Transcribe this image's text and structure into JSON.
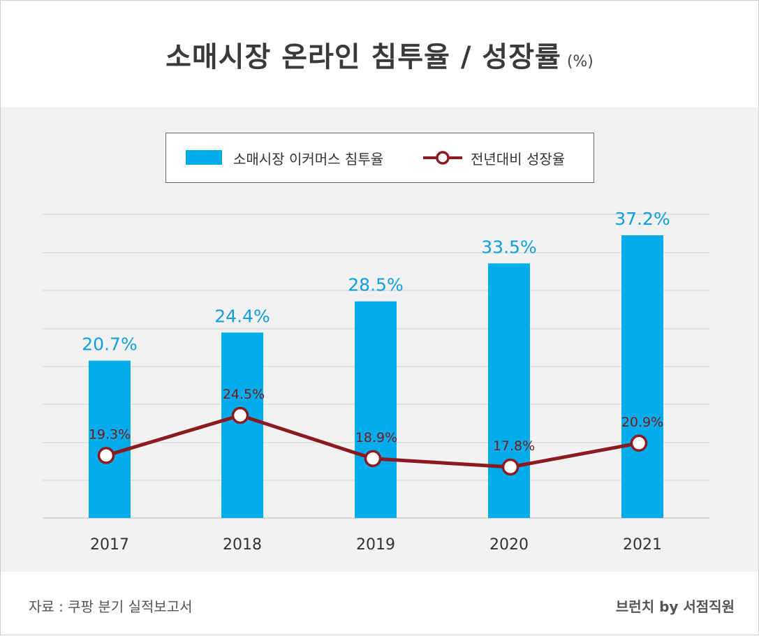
{
  "title": "소매시장 온라인 침투율 / 성장률",
  "unit": "(%)",
  "legend": {
    "bar_label": "소매시장 이커머스 침투율",
    "line_label": "전년대비 성장율"
  },
  "source": "자료 : 쿠팡 분기 실적보고서",
  "brand": "브런치 by 서점직원",
  "colors": {
    "bar": "#00aceb",
    "line": "#8c1a1f",
    "bar_label": "#0f9fdc",
    "line_label": "#7a1a1f",
    "grid": "#d0d0d0",
    "axis_text": "#333333"
  },
  "chart_data": {
    "type": "bar+line",
    "title": "소매시장 온라인 침투율 / 성장률",
    "categories": [
      "2017",
      "2018",
      "2019",
      "2020",
      "2021"
    ],
    "series": [
      {
        "name": "소매시장 이커머스 침투율",
        "type": "bar",
        "values": [
          20.7,
          24.4,
          28.5,
          33.5,
          37.2
        ],
        "labels": [
          "20.7%",
          "24.4%",
          "28.5%",
          "33.5%",
          "37.2%"
        ]
      },
      {
        "name": "전년대비 성장율",
        "type": "line",
        "values": [
          19.3,
          24.5,
          18.9,
          17.8,
          20.9
        ],
        "labels": [
          "19.3%",
          "24.5%",
          "18.9%",
          "17.8%",
          "20.9%"
        ]
      }
    ],
    "bar_ylim": [
      0,
      40
    ],
    "line_ylim": [
      0,
      40
    ],
    "grid": true,
    "legend_position": "top-center"
  }
}
